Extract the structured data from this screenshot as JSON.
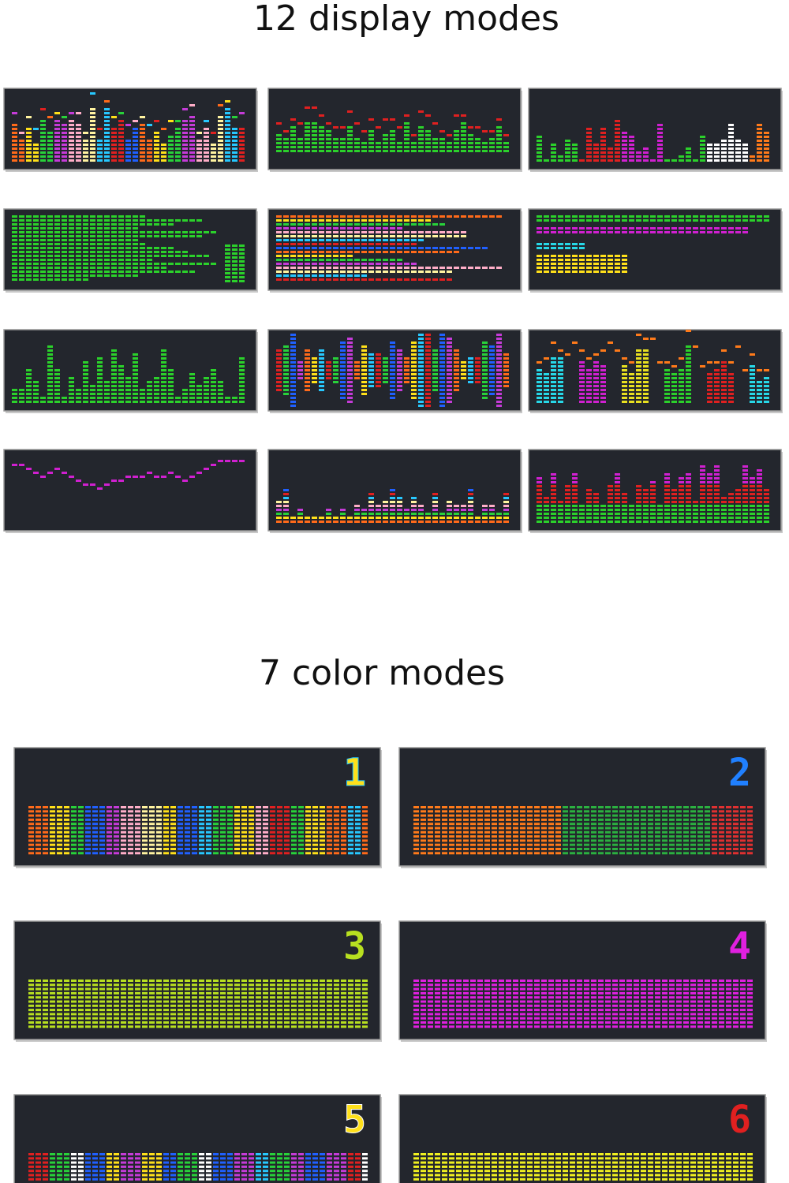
{
  "display_modes": {
    "title": "12 display modes"
  },
  "color_modes": {
    "title": "7 color modes",
    "panels": [
      "1",
      "2",
      "3",
      "4",
      "5",
      "6"
    ]
  }
}
